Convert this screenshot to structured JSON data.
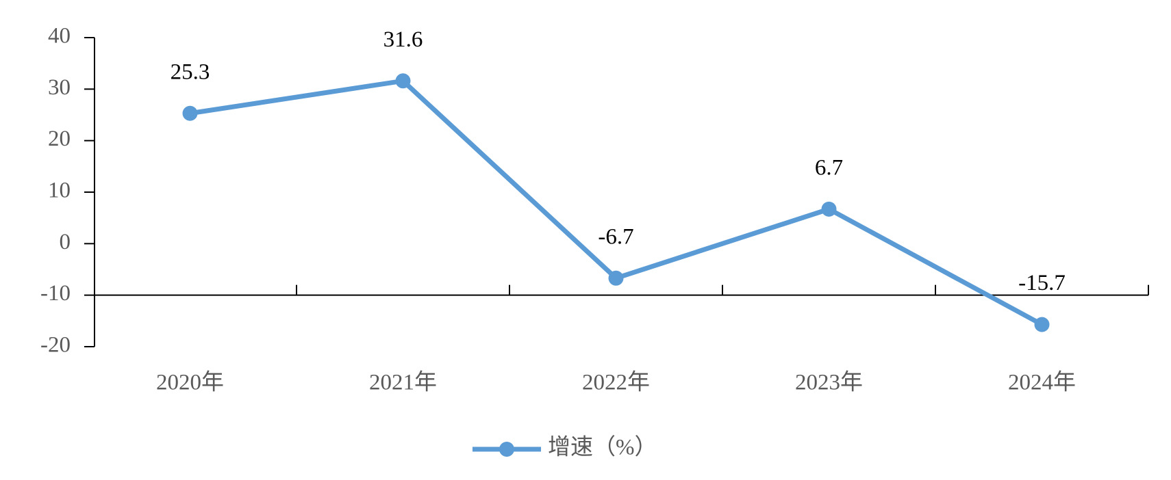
{
  "chart_data": {
    "type": "line",
    "categories": [
      "2020年",
      "2021年",
      "2022年",
      "2023年",
      "2024年"
    ],
    "series": [
      {
        "name": "增速（%）",
        "color": "#5b9bd5",
        "values": [
          25.3,
          31.6,
          -6.7,
          6.7,
          -15.7
        ]
      }
    ],
    "ylim": [
      -20,
      40
    ],
    "yticks": [
      -20,
      -10,
      0,
      10,
      20,
      30,
      40
    ],
    "xaxis_at": -10,
    "legend": "bottom"
  }
}
